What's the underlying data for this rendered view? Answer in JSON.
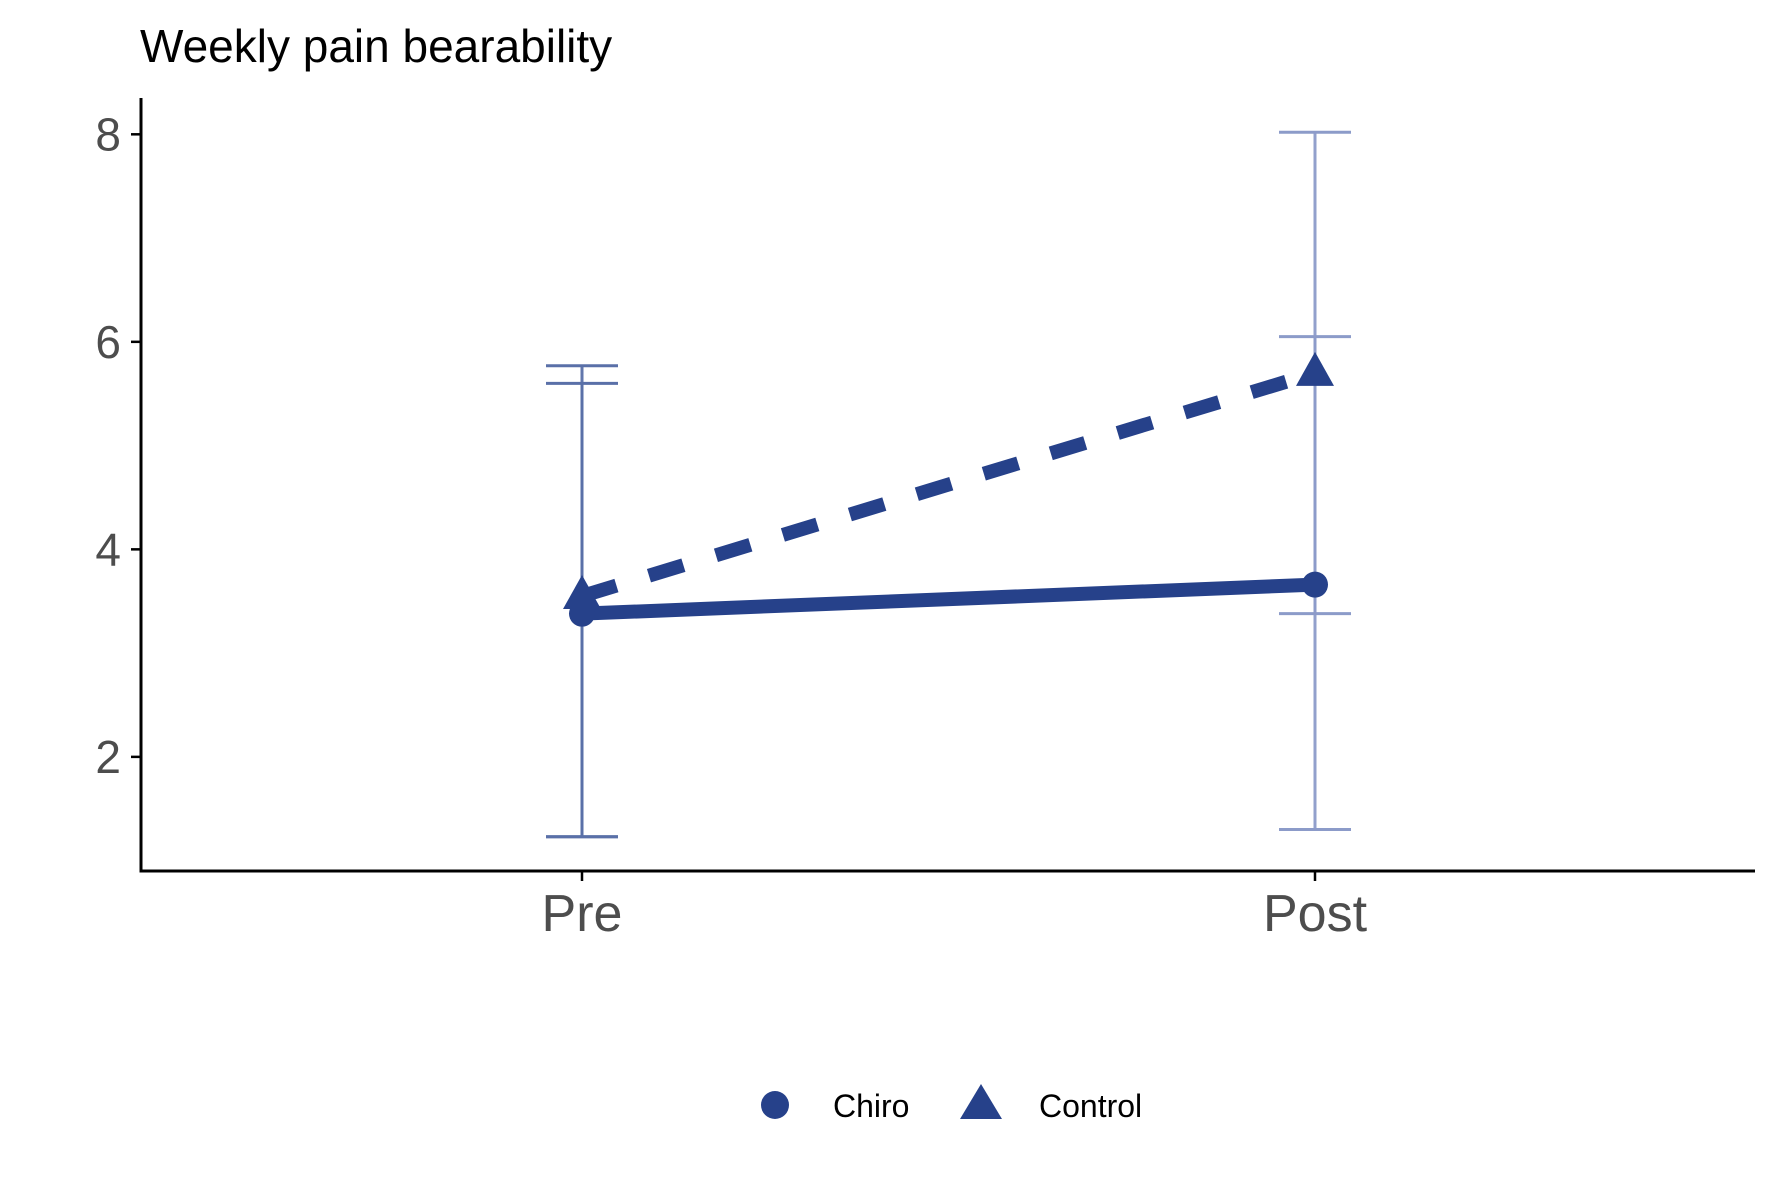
{
  "chart_data": {
    "type": "line",
    "title": "Weekly pain bearability",
    "xlabel": "",
    "ylabel": "",
    "categories": [
      "Pre",
      "Post"
    ],
    "ylim": [
      0.9,
      8.35
    ],
    "yticks": [
      2,
      4,
      6,
      8
    ],
    "grid": false,
    "legend_position": "bottom",
    "series": [
      {
        "name": "Chiro",
        "marker": "circle",
        "line_style": "solid",
        "values": [
          3.38,
          3.66
        ],
        "error_low": [
          1.23,
          1.3
        ],
        "error_high": [
          5.6,
          6.05
        ]
      },
      {
        "name": "Control",
        "marker": "triangle",
        "line_style": "dashed",
        "values": [
          3.55,
          5.7
        ],
        "error_low": [
          1.23,
          3.38
        ],
        "error_high": [
          5.77,
          8.02
        ]
      }
    ],
    "colors": {
      "line": "#26418a",
      "errorbar_pre": "#5a70a8",
      "errorbar_post": "#8c9bc9",
      "axis": "#000000",
      "tick_label": "#4d4d4d"
    }
  }
}
